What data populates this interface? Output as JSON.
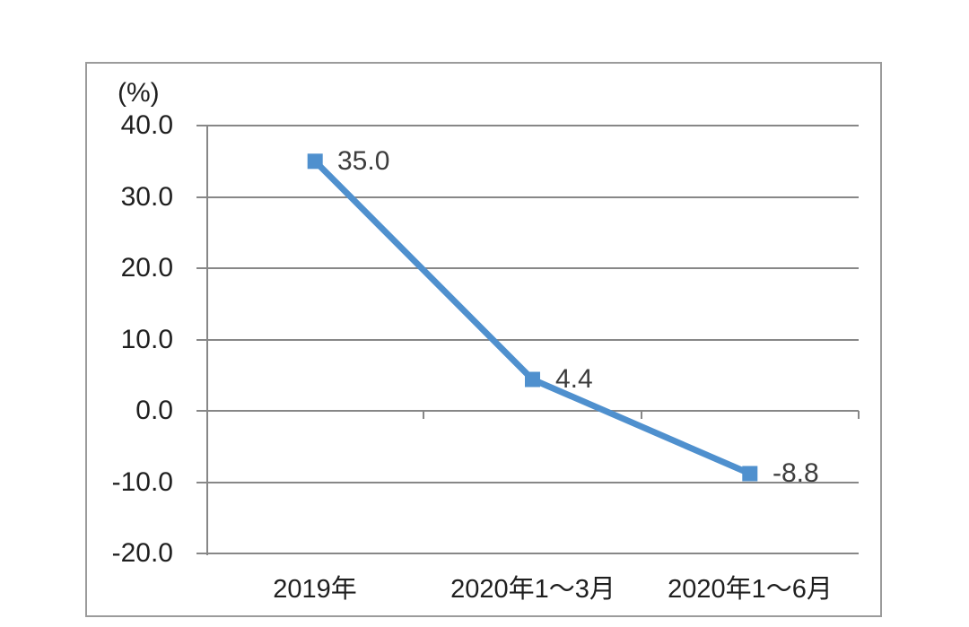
{
  "chart_data": {
    "type": "line",
    "title": "",
    "ylabel_unit": "(%)",
    "categories": [
      "2019年",
      "2020年1～3月",
      "2020年1～6月"
    ],
    "series": [
      {
        "name": "series-1",
        "values": [
          35.0,
          4.4,
          -8.8
        ]
      }
    ],
    "data_labels": [
      "35.0",
      "4.4",
      "-8.8"
    ],
    "ytick_values": [
      40,
      30,
      20,
      10,
      0,
      -10,
      -20
    ],
    "ytick_labels": [
      "40.0",
      "30.0",
      "20.0",
      "10.0",
      "0.0",
      "-10.0",
      "-20.0"
    ],
    "ylim": [
      -20,
      40
    ],
    "axis_crosses_at": 0,
    "grid": true,
    "legend": "none",
    "colors": {
      "line": "#4f90ce",
      "marker": "#4f90ce",
      "gridline": "#878787",
      "frame_border": "#9b9b9b",
      "axis_text": "#1f1f1f",
      "data_label_text": "#3d3d3d",
      "background": "#ffffff"
    },
    "marker_shape": "square"
  }
}
